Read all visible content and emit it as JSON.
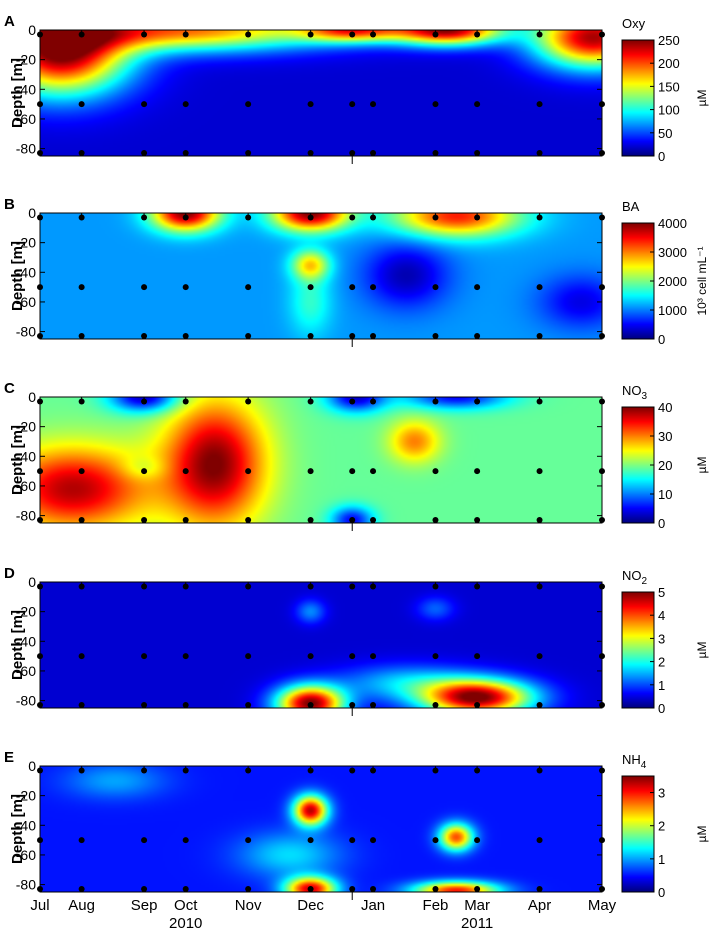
{
  "chart_data": {
    "type": "heatmap",
    "shared_x": {
      "months": [
        "Jul",
        "Aug",
        "Sep",
        "Oct",
        "Nov",
        "Dec",
        "Jan",
        "Feb",
        "Mar",
        "Apr",
        "May"
      ],
      "month_positions": [
        0,
        1,
        2.5,
        3.5,
        5,
        6.5,
        8,
        9.5,
        10.5,
        12,
        13.5
      ],
      "years": [
        {
          "label": "2010",
          "pos": 3.5
        },
        {
          "label": "2011",
          "pos": 10.5
        }
      ],
      "year_divider_pos": 7.5,
      "sample_times": [
        0,
        1,
        2.5,
        3.5,
        5,
        6.5,
        7.5,
        8,
        9.5,
        10.5,
        12,
        13.5
      ],
      "xlim": [
        0,
        13.5
      ]
    },
    "panels": [
      {
        "letter": "A",
        "title": "Oxy",
        "title_sub": "",
        "unit_label": "µM",
        "ylabel": "Depth [m]",
        "yticks": [
          0,
          -20,
          -40,
          -60,
          -80
        ],
        "ylim": [
          -85,
          0
        ],
        "cbar_ticks": [
          0,
          50,
          100,
          150,
          200,
          250
        ],
        "vmin": 0,
        "vmax": 250,
        "background": 20,
        "sample_depths": [
          -3,
          -50,
          -83
        ],
        "blobs": [
          {
            "x": 0.5,
            "y": -15,
            "sx": 1.6,
            "sy": 28,
            "v": 250
          },
          {
            "x": 3.5,
            "y": 0,
            "sx": 3.5,
            "sy": 14,
            "v": 190
          },
          {
            "x": 7.5,
            "y": 0,
            "sx": 1.2,
            "sy": 8,
            "v": 170
          },
          {
            "x": 9.8,
            "y": 0,
            "sx": 1.3,
            "sy": 10,
            "v": 240
          },
          {
            "x": 13.3,
            "y": -5,
            "sx": 1.4,
            "sy": 20,
            "v": 240
          }
        ]
      },
      {
        "letter": "B",
        "title": "BA",
        "title_sub": "",
        "unit_label": "10³ cell mL⁻¹",
        "ylabel": "Depth [m]",
        "yticks": [
          0,
          -20,
          -40,
          -60,
          -80
        ],
        "ylim": [
          -85,
          0
        ],
        "cbar_ticks": [
          0,
          1000,
          2000,
          3000,
          4000
        ],
        "vmin": 0,
        "vmax": 4000,
        "background": 1100,
        "sample_depths": [
          -3,
          -50,
          -83
        ],
        "blobs": [
          {
            "x": 3.5,
            "y": 0,
            "sx": 0.8,
            "sy": 12,
            "v": 4000
          },
          {
            "x": 6.5,
            "y": 0,
            "sx": 0.9,
            "sy": 12,
            "v": 4000
          },
          {
            "x": 6.5,
            "y": -35,
            "sx": 0.45,
            "sy": 10,
            "v": 2600
          },
          {
            "x": 10.0,
            "y": -2,
            "sx": 1.5,
            "sy": 14,
            "v": 3400
          },
          {
            "x": 6.5,
            "y": -60,
            "sx": 0.5,
            "sy": 22,
            "v": 1700
          },
          {
            "x": 8.8,
            "y": -42,
            "sx": 1.0,
            "sy": 22,
            "v": 200
          },
          {
            "x": 13.0,
            "y": -60,
            "sx": 1.0,
            "sy": 18,
            "v": 400
          }
        ]
      },
      {
        "letter": "C",
        "title": "NO",
        "title_sub": "3",
        "unit_label": "µM",
        "ylabel": "Depth [m]",
        "yticks": [
          0,
          -20,
          -40,
          -60,
          -80
        ],
        "ylim": [
          -85,
          0
        ],
        "cbar_ticks": [
          0,
          10,
          20,
          30,
          40
        ],
        "vmin": 0,
        "vmax": 40,
        "background": 19,
        "sample_depths": [
          -3,
          -50,
          -83
        ],
        "blobs": [
          {
            "x": 0.8,
            "y": -62,
            "sx": 1.8,
            "sy": 28,
            "v": 38
          },
          {
            "x": 4.2,
            "y": -45,
            "sx": 1.2,
            "sy": 42,
            "v": 40
          },
          {
            "x": 2.5,
            "y": -48,
            "sx": 0.55,
            "sy": 8,
            "v": 15
          },
          {
            "x": 2.5,
            "y": 0,
            "sx": 0.8,
            "sy": 10,
            "v": 2
          },
          {
            "x": 7.6,
            "y": 0,
            "sx": 0.7,
            "sy": 10,
            "v": 3
          },
          {
            "x": 10.0,
            "y": 0,
            "sx": 1.2,
            "sy": 8,
            "v": 5
          },
          {
            "x": 7.5,
            "y": -83,
            "sx": 0.5,
            "sy": 9,
            "v": 5
          },
          {
            "x": 9.0,
            "y": -30,
            "sx": 0.6,
            "sy": 14,
            "v": 30
          }
        ]
      },
      {
        "letter": "D",
        "title": "NO",
        "title_sub": "2",
        "unit_label": "µM",
        "ylabel": "Depth [m]",
        "yticks": [
          0,
          -20,
          -40,
          -60,
          -80
        ],
        "ylim": [
          -85,
          0
        ],
        "cbar_ticks": [
          0,
          1,
          2,
          3,
          4,
          5
        ],
        "vmin": 0,
        "vmax": 5,
        "background": 0.4,
        "sample_depths": [
          -3,
          -50,
          -83
        ],
        "blobs": [
          {
            "x": 6.5,
            "y": -82,
            "sx": 0.8,
            "sy": 12,
            "v": 5
          },
          {
            "x": 10.5,
            "y": -78,
            "sx": 1.3,
            "sy": 12,
            "v": 5
          },
          {
            "x": 6.5,
            "y": -20,
            "sx": 0.35,
            "sy": 8,
            "v": 1.3
          },
          {
            "x": 9.5,
            "y": -18,
            "sx": 0.45,
            "sy": 8,
            "v": 1.1
          },
          {
            "x": 8.8,
            "y": -68,
            "sx": 1.6,
            "sy": 12,
            "v": 1.6
          }
        ]
      },
      {
        "letter": "E",
        "title": "NH",
        "title_sub": "4",
        "unit_label": "µM",
        "ylabel": "Depth [m]",
        "yticks": [
          0,
          -20,
          -40,
          -60,
          -80
        ],
        "ylim": [
          -85,
          0
        ],
        "cbar_ticks": [
          0,
          1,
          2,
          3
        ],
        "vmin": 0,
        "vmax": 3.5,
        "background": 0.5,
        "sample_depths": [
          -3,
          -50,
          -83
        ],
        "blobs": [
          {
            "x": 6.5,
            "y": -30,
            "sx": 0.4,
            "sy": 10,
            "v": 3.3
          },
          {
            "x": 10.0,
            "y": -48,
            "sx": 0.4,
            "sy": 9,
            "v": 2.8
          },
          {
            "x": 6.5,
            "y": -83,
            "sx": 0.6,
            "sy": 8,
            "v": 3.2
          },
          {
            "x": 10.0,
            "y": -84,
            "sx": 1.0,
            "sy": 6,
            "v": 3.0
          },
          {
            "x": 1.8,
            "y": -10,
            "sx": 1.2,
            "sy": 12,
            "v": 1.0
          },
          {
            "x": 6.0,
            "y": -60,
            "sx": 1.2,
            "sy": 15,
            "v": 1.2
          }
        ]
      }
    ]
  }
}
